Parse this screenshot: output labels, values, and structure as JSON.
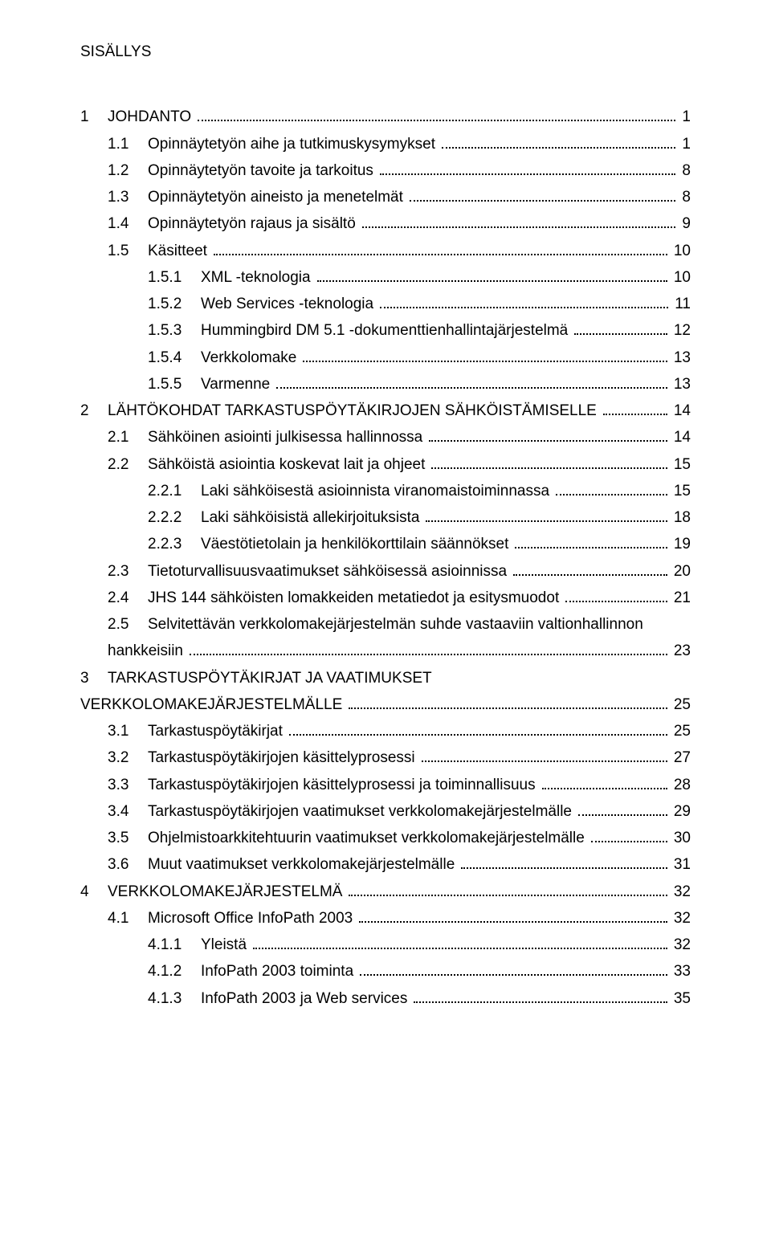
{
  "title": "SISÄLLYS",
  "toc": [
    {
      "level": 1,
      "num": "1",
      "label": "JOHDANTO",
      "page": "1"
    },
    {
      "level": 2,
      "num": "1.1",
      "label": "Opinnäytetyön aihe ja tutkimuskysymykset",
      "page": "1"
    },
    {
      "level": 2,
      "num": "1.2",
      "label": "Opinnäytetyön tavoite ja tarkoitus",
      "page": "8"
    },
    {
      "level": 2,
      "num": "1.3",
      "label": "Opinnäytetyön aineisto ja menetelmät",
      "page": "8"
    },
    {
      "level": 2,
      "num": "1.4",
      "label": "Opinnäytetyön rajaus ja sisältö",
      "page": "9"
    },
    {
      "level": 2,
      "num": "1.5",
      "label": "Käsitteet",
      "page": "10"
    },
    {
      "level": 3,
      "num": "1.5.1",
      "label": "XML -teknologia",
      "page": "10"
    },
    {
      "level": 3,
      "num": "1.5.2",
      "label": "Web Services -teknologia",
      "page": "11"
    },
    {
      "level": 3,
      "num": "1.5.3",
      "label": "Hummingbird DM 5.1 -dokumenttienhallintajärjestelmä",
      "page": "12"
    },
    {
      "level": 3,
      "num": "1.5.4",
      "label": "Verkkolomake",
      "page": "13"
    },
    {
      "level": 3,
      "num": "1.5.5",
      "label": "Varmenne",
      "page": "13"
    },
    {
      "level": 1,
      "num": "2",
      "label": "LÄHTÖKOHDAT TARKASTUSPÖYTÄKIRJOJEN SÄHKÖISTÄMISELLE",
      "page": "14"
    },
    {
      "level": 2,
      "num": "2.1",
      "label": "Sähköinen asiointi julkisessa hallinnossa",
      "page": "14"
    },
    {
      "level": 2,
      "num": "2.2",
      "label": "Sähköistä asiointia koskevat lait ja ohjeet",
      "page": "15"
    },
    {
      "level": 3,
      "num": "2.2.1",
      "label": "Laki sähköisestä asioinnista viranomaistoiminnassa",
      "page": "15"
    },
    {
      "level": 3,
      "num": "2.2.2",
      "label": "Laki sähköisistä allekirjoituksista",
      "page": "18"
    },
    {
      "level": 3,
      "num": "2.2.3",
      "label": "Väestötietolain ja henkilökorttilain säännökset",
      "page": "19"
    },
    {
      "level": 2,
      "num": "2.3",
      "label": "Tietoturvallisuusvaatimukset sähköisessä asioinnissa",
      "page": "20"
    },
    {
      "level": 2,
      "num": "2.4",
      "label": "JHS 144 sähköisten lomakkeiden metatiedot ja esitysmuodot",
      "page": "21"
    },
    {
      "level": 2,
      "num": "2.5",
      "label": "Selvitettävän verkkolomakejärjestelmän suhde vastaaviin valtionhallinnon",
      "page": "",
      "noDots": true,
      "wrap": true
    },
    {
      "level": 2,
      "num": "",
      "label": "hankkeisiin",
      "page": "23",
      "continuation": true
    },
    {
      "level": 1,
      "num": "3",
      "label": "TARKASTUSPÖYTÄKIRJAT JA VAATIMUKSET",
      "page": "",
      "noDots": true
    },
    {
      "level": 1,
      "num": "",
      "label": "VERKKOLOMAKEJÄRJESTELMÄLLE",
      "page": "25",
      "continuation": true,
      "noIndent": true
    },
    {
      "level": 2,
      "num": "3.1",
      "label": "Tarkastuspöytäkirjat",
      "page": "25"
    },
    {
      "level": 2,
      "num": "3.2",
      "label": "Tarkastuspöytäkirjojen käsittelyprosessi",
      "page": "27"
    },
    {
      "level": 2,
      "num": "3.3",
      "label": "Tarkastuspöytäkirjojen käsittelyprosessi ja toiminnallisuus",
      "page": "28"
    },
    {
      "level": 2,
      "num": "3.4",
      "label": "Tarkastuspöytäkirjojen vaatimukset verkkolomakejärjestelmälle",
      "page": "29"
    },
    {
      "level": 2,
      "num": "3.5",
      "label": "Ohjelmistoarkkitehtuurin vaatimukset verkkolomakejärjestelmälle",
      "page": "30"
    },
    {
      "level": 2,
      "num": "3.6",
      "label": "Muut vaatimukset verkkolomakejärjestelmälle",
      "page": "31"
    },
    {
      "level": 1,
      "num": "4",
      "label": "VERKKOLOMAKEJÄRJESTELMÄ",
      "page": "32"
    },
    {
      "level": 2,
      "num": "4.1",
      "label": "Microsoft Office InfoPath 2003",
      "page": "32"
    },
    {
      "level": 3,
      "num": "4.1.1",
      "label": "Yleistä",
      "page": "32"
    },
    {
      "level": 3,
      "num": "4.1.2",
      "label": "InfoPath 2003 toiminta",
      "page": "33"
    },
    {
      "level": 3,
      "num": "4.1.3",
      "label": "InfoPath 2003 ja Web services",
      "page": "35"
    }
  ]
}
